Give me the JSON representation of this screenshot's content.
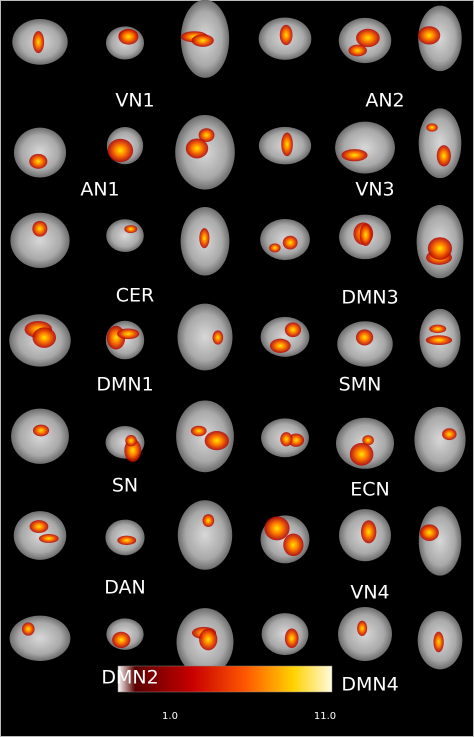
{
  "panels": [
    {
      "label": "VN1"
    },
    {
      "label": "AN2"
    },
    {
      "label": "AN1"
    },
    {
      "label": "VN3"
    },
    {
      "label": "CER"
    },
    {
      "label": "DMN3"
    },
    {
      "label": "DMN1"
    },
    {
      "label": "SMN"
    },
    {
      "label": "SN"
    },
    {
      "label": "ECN"
    },
    {
      "label": "DAN"
    },
    {
      "label": "VN4"
    },
    {
      "label": "DMN2"
    },
    {
      "label": "DMN4"
    }
  ],
  "colorbar": {
    "min_label": "1.0",
    "max_label": "11.0"
  }
}
